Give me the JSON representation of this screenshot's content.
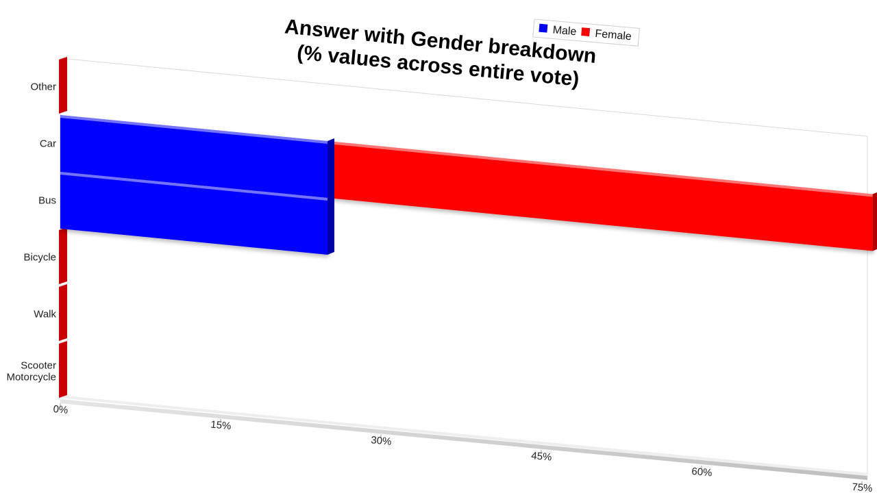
{
  "chart_data": {
    "type": "bar",
    "orientation": "horizontal",
    "stacked": true,
    "title": [
      "Answer with Gender breakdown",
      "(% values across entire vote)"
    ],
    "categories": [
      "Other",
      "Car",
      "Bus",
      "Bicycle",
      "Walk",
      "Scooter\nMotorcycle"
    ],
    "series": [
      {
        "name": "Male",
        "color": "#0000ff",
        "values": [
          0,
          25,
          25,
          0,
          0,
          0
        ]
      },
      {
        "name": "Female",
        "color": "#ff0000",
        "values": [
          0,
          51,
          0,
          0,
          0,
          0
        ]
      }
    ],
    "x_ticks": [
      "0%",
      "15%",
      "30%",
      "45%",
      "60%",
      "75%"
    ],
    "xlim": [
      0,
      75
    ],
    "legend_position": "top-right",
    "grid": false
  }
}
